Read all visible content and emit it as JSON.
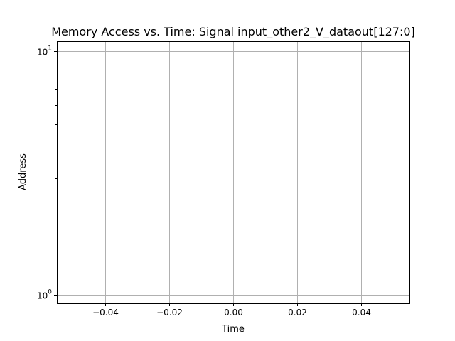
{
  "chart_data": {
    "type": "scatter",
    "title": "Memory Access vs. Time: Signal input_other2_V_dataout[127:0]",
    "xlabel": "Time",
    "ylabel": "Address",
    "xlim": [
      -0.055,
      0.055
    ],
    "ylim": [
      0.92,
      11.0
    ],
    "yscale": "log",
    "grid": true,
    "x_ticks": [
      -0.04,
      -0.02,
      0.0,
      0.02,
      0.04
    ],
    "x_tick_labels": [
      "−0.04",
      "−0.02",
      "0.00",
      "0.02",
      "0.04"
    ],
    "y_ticks": [
      1,
      10
    ],
    "y_tick_labels": [
      {
        "base": "10",
        "exp": "0"
      },
      {
        "base": "10",
        "exp": "1"
      }
    ],
    "y_minor_ticks": [
      2,
      3,
      4,
      5,
      6,
      7,
      8,
      9
    ],
    "series": [
      {
        "x": [],
        "y": []
      }
    ]
  }
}
